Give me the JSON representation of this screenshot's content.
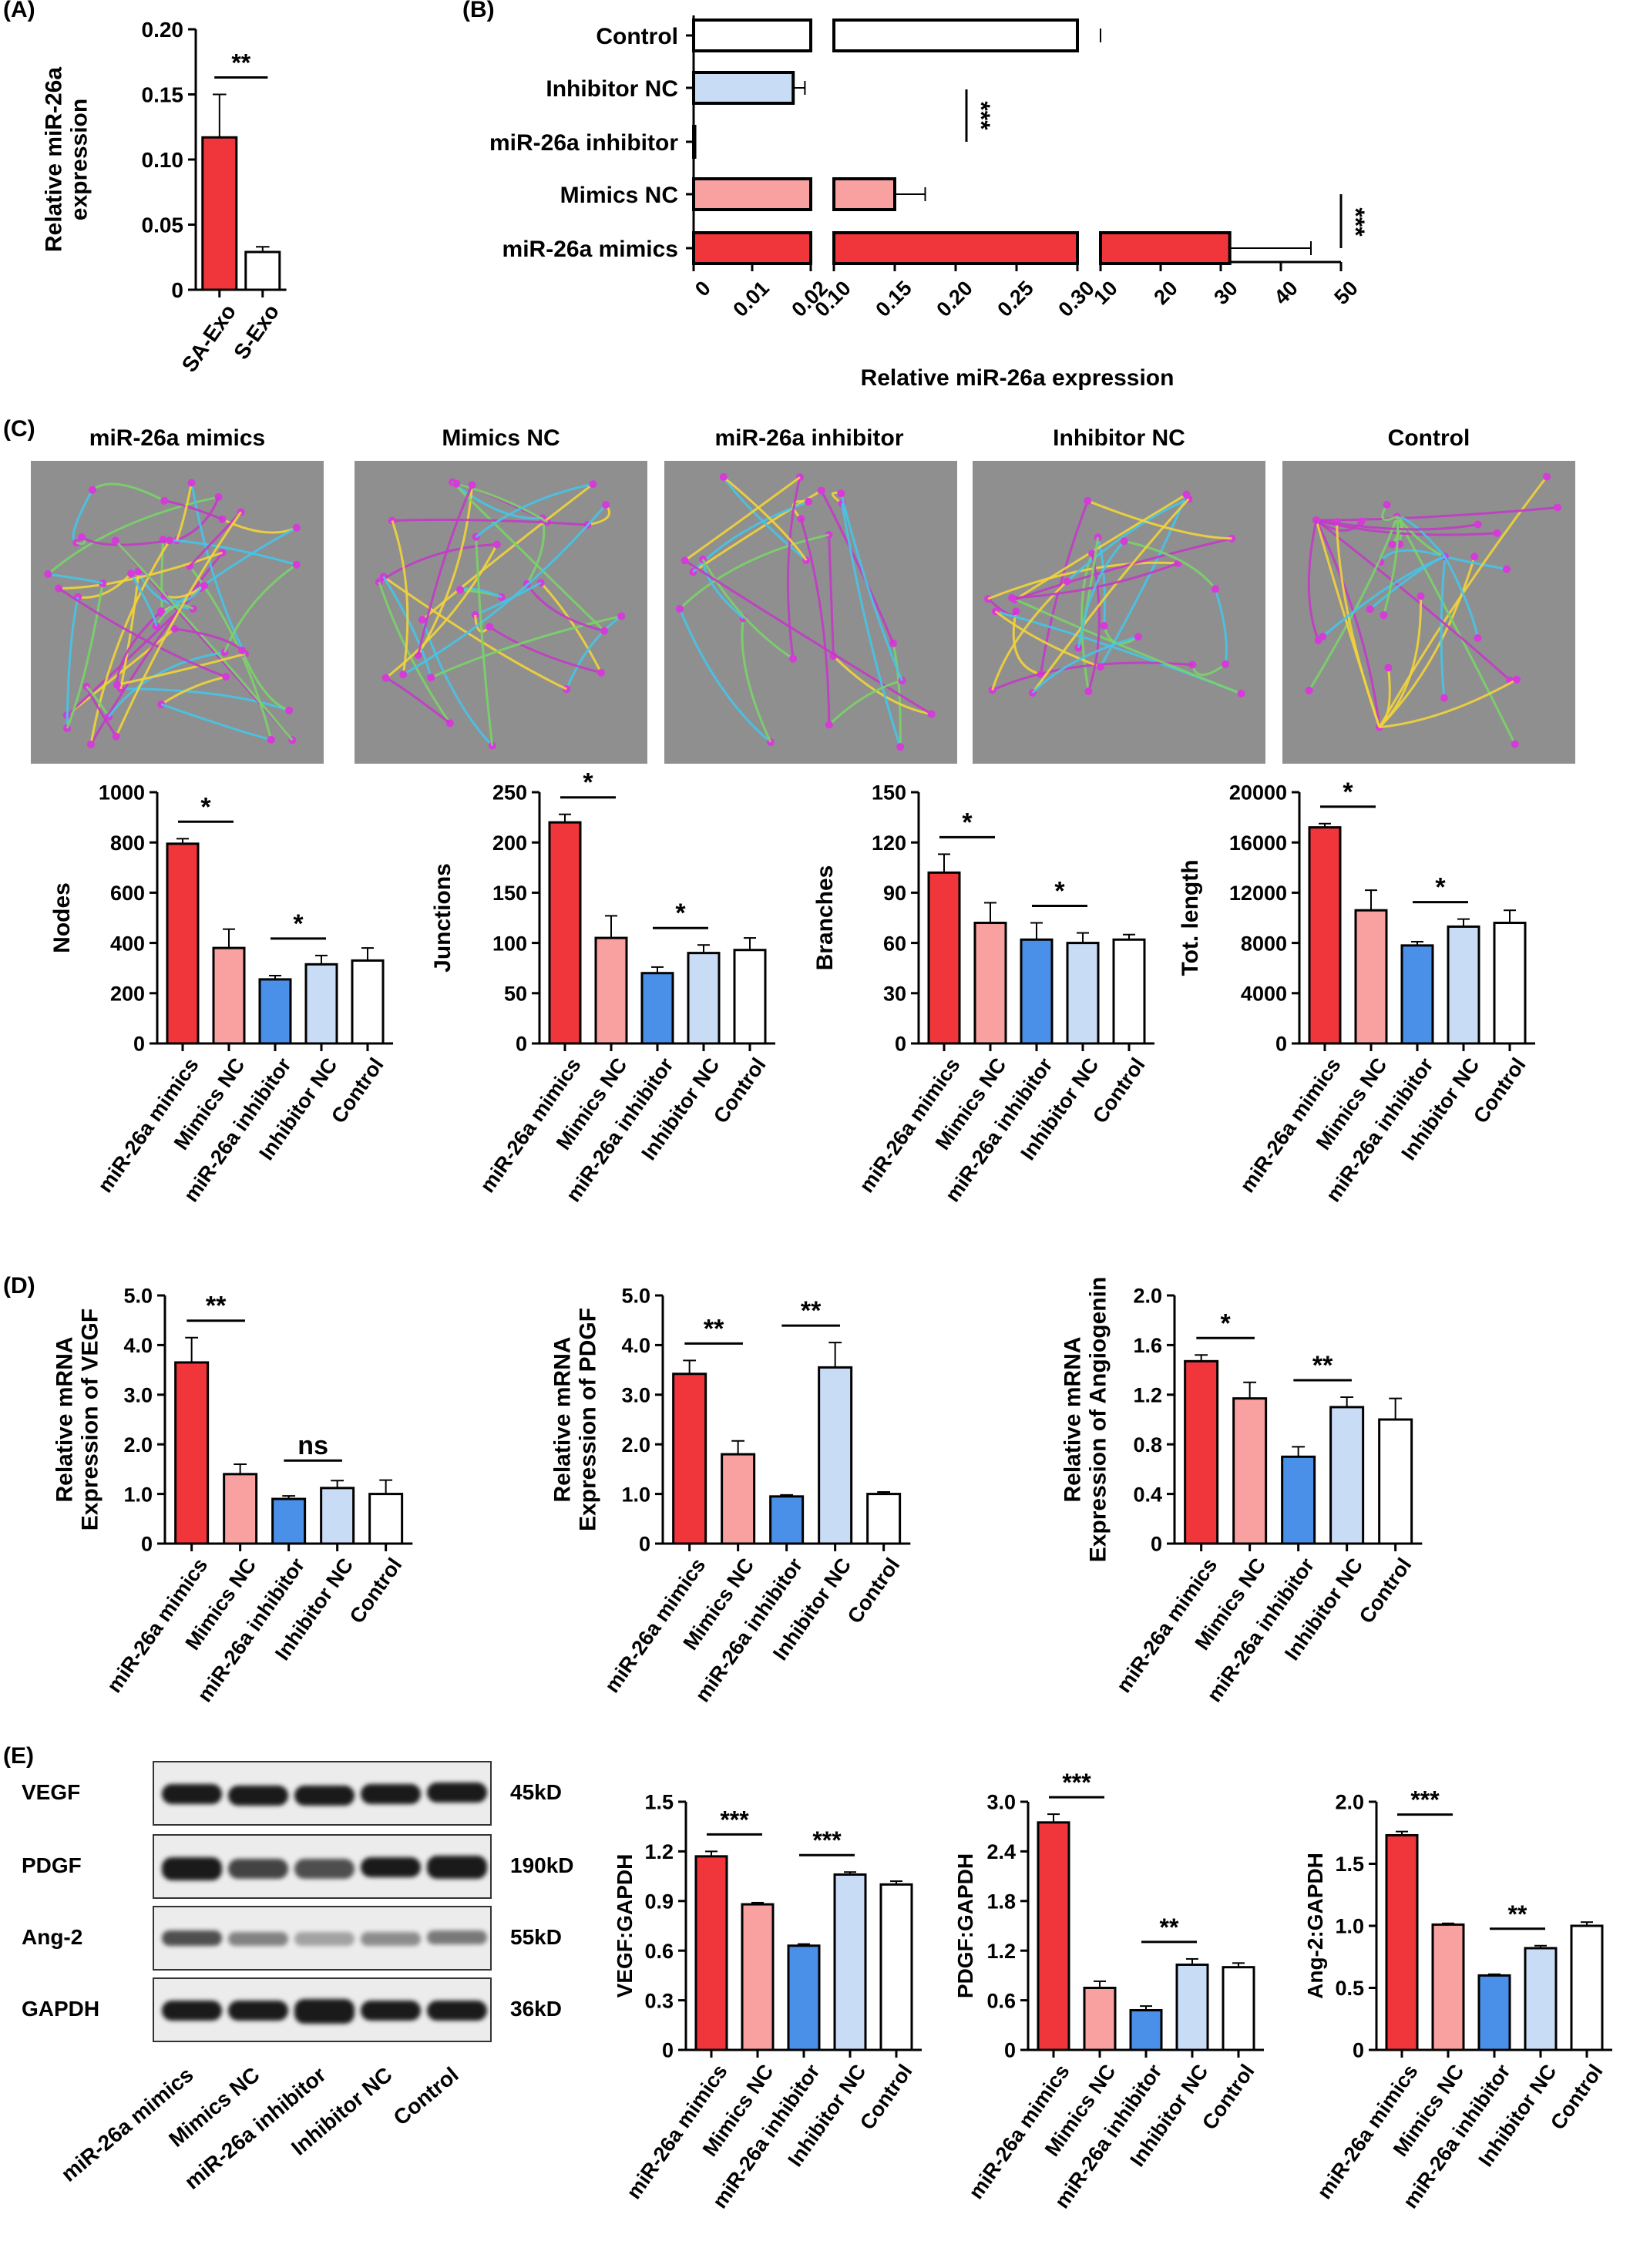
{
  "colors": {
    "mimics": "#f0363b",
    "mimicsnc": "#f9a1a1",
    "inhibitor": "#4a90e8",
    "inhibitornc": "#c9dcf6",
    "control": "#ffffff"
  },
  "groups": [
    "miR-26a mimics",
    "Mimics NC",
    "miR-26a inhibitor",
    "Inhibitor NC",
    "Control"
  ],
  "panels": {
    "A": "(A)",
    "B": "(B)",
    "C": "(C)",
    "D": "(D)",
    "E": "(E)"
  },
  "micro_titles": [
    "miR-26a mimics",
    "Mimics NC",
    "miR-26a inhibitor",
    "Inhibitor NC",
    "Control"
  ],
  "western": {
    "rows": [
      {
        "name": "VEGF",
        "size": "45kD"
      },
      {
        "name": "PDGF",
        "size": "190kD"
      },
      {
        "name": "Ang-2",
        "size": "55kD"
      },
      {
        "name": "GAPDH",
        "size": "36kD"
      }
    ],
    "lanes": [
      "miR-26a mimics",
      "Mimics NC",
      "miR-26a inhibitor",
      "Inhibitor NC",
      "Control"
    ]
  },
  "chart_data": [
    {
      "id": "A",
      "type": "bar",
      "categories": [
        "SA-Exo",
        "S-Exo"
      ],
      "values": [
        0.117,
        0.029
      ],
      "errors": [
        0.033,
        0.004
      ],
      "ylabel": "Relative miR-26a\nexpression",
      "ylim": [
        0,
        0.2
      ],
      "yticks": [
        "0",
        "0.05",
        "0.10",
        "0.15",
        "0.20"
      ],
      "sig": [
        {
          "from": 0,
          "to": 1,
          "label": "**"
        }
      ]
    },
    {
      "id": "B",
      "type": "bar",
      "orientation": "horizontal",
      "categories": [
        "Control",
        "Inhibitor NC",
        "miR-26a inhibitor",
        "Mimics NC",
        "miR-26a mimics"
      ],
      "values": [
        1.0,
        0.017,
        0.0002,
        0.15,
        31.5
      ],
      "errors": [
        0.07,
        0.002,
        0,
        0.025,
        13.5
      ],
      "xlabel": "Relative miR-26a expression",
      "xaxis_segments": [
        [
          0,
          0.02
        ],
        [
          0.1,
          0.3
        ],
        [
          10,
          50
        ]
      ],
      "xticks": [
        "0",
        "0.01",
        "0.02",
        "0.10",
        "0.15",
        "0.20",
        "0.25",
        "0.30",
        "10",
        "20",
        "30",
        "40",
        "50"
      ],
      "sig": [
        {
          "label": "***"
        },
        {
          "label": "***"
        }
      ]
    },
    {
      "id": "C1",
      "type": "bar",
      "values": [
        795,
        380,
        255,
        315,
        330
      ],
      "errors": [
        20,
        75,
        15,
        35,
        50
      ],
      "ylabel": "Nodes",
      "ylim": [
        0,
        1000
      ],
      "yticks": [
        "0",
        "200",
        "400",
        "600",
        "800",
        "1000"
      ],
      "sig": [
        {
          "from": 0,
          "to": 1,
          "label": "*"
        },
        {
          "from": 2,
          "to": 3,
          "label": "*"
        }
      ]
    },
    {
      "id": "C2",
      "type": "bar",
      "values": [
        220,
        105,
        70,
        90,
        93
      ],
      "errors": [
        8,
        22,
        6,
        8,
        12
      ],
      "ylabel": "Junctions",
      "ylim": [
        0,
        250
      ],
      "yticks": [
        "0",
        "50",
        "100",
        "150",
        "200",
        "250"
      ],
      "sig": [
        {
          "from": 0,
          "to": 1,
          "label": "*"
        },
        {
          "from": 2,
          "to": 3,
          "label": "*"
        }
      ]
    },
    {
      "id": "C3",
      "type": "bar",
      "values": [
        102,
        72,
        62,
        60,
        62
      ],
      "errors": [
        11,
        12,
        10,
        6,
        3
      ],
      "ylabel": "Branches",
      "ylim": [
        0,
        150
      ],
      "yticks": [
        "0",
        "30",
        "60",
        "90",
        "120",
        "150"
      ],
      "sig": [
        {
          "from": 0,
          "to": 1,
          "label": "*"
        },
        {
          "from": 2,
          "to": 3,
          "label": "*"
        }
      ]
    },
    {
      "id": "C4",
      "type": "bar",
      "values": [
        17200,
        10600,
        7800,
        9300,
        9600
      ],
      "errors": [
        300,
        1600,
        300,
        600,
        1000
      ],
      "ylabel": "Tot. length",
      "ylim": [
        0,
        20000
      ],
      "yticks": [
        "0",
        "4000",
        "8000",
        "12000",
        "16000",
        "20000"
      ],
      "sig": [
        {
          "from": 0,
          "to": 1,
          "label": "*"
        },
        {
          "from": 2,
          "to": 3,
          "label": "*"
        }
      ]
    },
    {
      "id": "D1",
      "type": "bar",
      "values": [
        3.65,
        1.4,
        0.9,
        1.12,
        1.0
      ],
      "errors": [
        0.5,
        0.2,
        0.06,
        0.15,
        0.28
      ],
      "ylabel": "Relative mRNA\nExpression of VEGF",
      "ylim": [
        0,
        5
      ],
      "yticks": [
        "0",
        "1.0",
        "2.0",
        "3.0",
        "4.0",
        "5.0"
      ],
      "sig": [
        {
          "from": 0,
          "to": 1,
          "label": "**"
        },
        {
          "from": 2,
          "to": 3,
          "label": "ns"
        }
      ]
    },
    {
      "id": "D2",
      "type": "bar",
      "values": [
        3.42,
        1.8,
        0.95,
        3.55,
        1.0
      ],
      "errors": [
        0.27,
        0.27,
        0.03,
        0.5,
        0.04
      ],
      "ylabel": "Relative mRNA\nExpression of PDGF",
      "ylim": [
        0,
        5
      ],
      "yticks": [
        "0",
        "1.0",
        "2.0",
        "3.0",
        "4.0",
        "5.0"
      ],
      "sig": [
        {
          "from": 0,
          "to": 1,
          "label": "**"
        },
        {
          "from": 2,
          "to": 3,
          "label": "**"
        }
      ]
    },
    {
      "id": "D3",
      "type": "bar",
      "values": [
        1.47,
        1.17,
        0.7,
        1.1,
        1.0
      ],
      "errors": [
        0.05,
        0.13,
        0.08,
        0.08,
        0.17
      ],
      "ylabel": "Relative mRNA\nExpression of Angiogenin",
      "ylim": [
        0,
        2
      ],
      "yticks": [
        "0",
        "0.4",
        "0.8",
        "1.2",
        "1.6",
        "2.0"
      ],
      "sig": [
        {
          "from": 0,
          "to": 1,
          "label": "*"
        },
        {
          "from": 2,
          "to": 3,
          "label": "**"
        }
      ]
    },
    {
      "id": "E1",
      "type": "bar",
      "values": [
        1.17,
        0.88,
        0.63,
        1.06,
        1.0
      ],
      "errors": [
        0.03,
        0.01,
        0.01,
        0.015,
        0.02
      ],
      "ylabel": "VEGF:GAPDH",
      "ylim": [
        0,
        1.5
      ],
      "yticks": [
        "0",
        "0.3",
        "0.6",
        "0.9",
        "1.2",
        "1.5"
      ],
      "sig": [
        {
          "from": 0,
          "to": 1,
          "label": "***"
        },
        {
          "from": 2,
          "to": 3,
          "label": "***"
        }
      ]
    },
    {
      "id": "E2",
      "type": "bar",
      "values": [
        2.75,
        0.75,
        0.48,
        1.03,
        1.0
      ],
      "errors": [
        0.1,
        0.08,
        0.05,
        0.07,
        0.05
      ],
      "ylabel": "PDGF:GAPDH",
      "ylim": [
        0,
        3
      ],
      "yticks": [
        "0",
        "0.6",
        "1.2",
        "1.8",
        "2.4",
        "3.0"
      ],
      "sig": [
        {
          "from": 0,
          "to": 1,
          "label": "***"
        },
        {
          "from": 2,
          "to": 3,
          "label": "**"
        }
      ]
    },
    {
      "id": "E3",
      "type": "bar",
      "values": [
        1.73,
        1.01,
        0.6,
        0.82,
        1.0
      ],
      "errors": [
        0.03,
        0.01,
        0.01,
        0.02,
        0.03
      ],
      "ylabel": "Ang-2:GAPDH",
      "ylim": [
        0,
        2
      ],
      "yticks": [
        "0",
        "0.5",
        "1.0",
        "1.5",
        "2.0"
      ],
      "sig": [
        {
          "from": 0,
          "to": 1,
          "label": "***"
        },
        {
          "from": 2,
          "to": 3,
          "label": "**"
        }
      ]
    }
  ]
}
